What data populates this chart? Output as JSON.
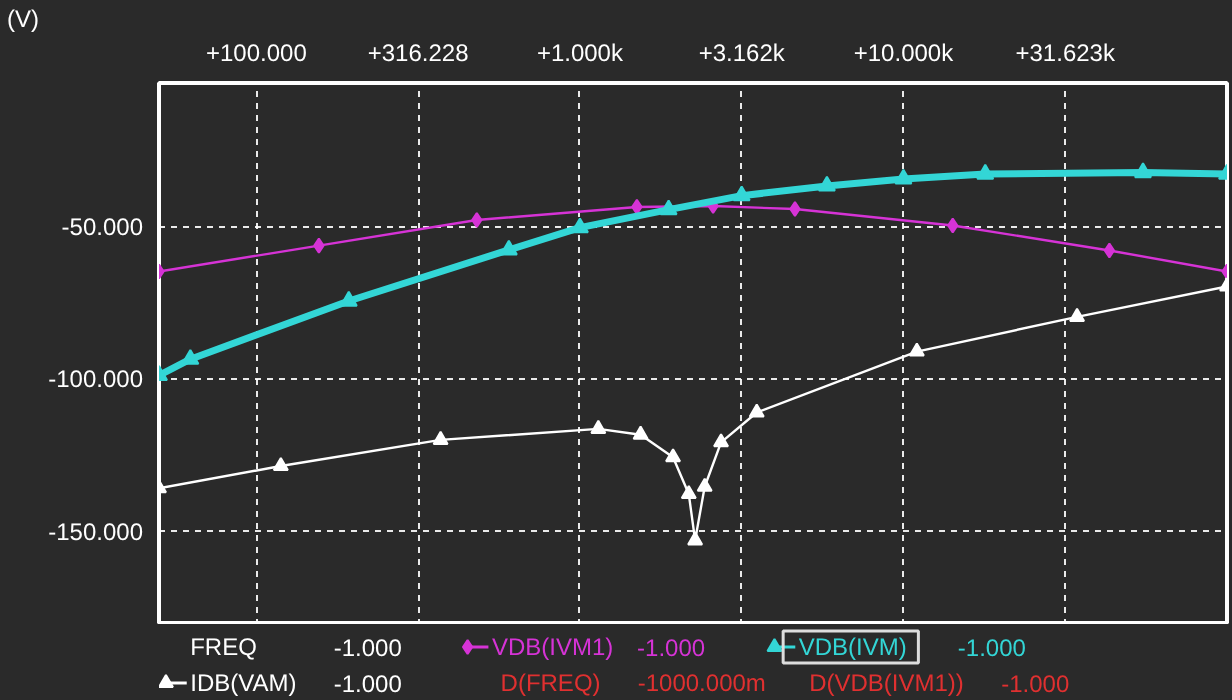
{
  "chart_data": {
    "type": "line",
    "ylabel": "(V)",
    "log": "x",
    "xlim": [
      50,
      100000
    ],
    "xticks": [
      {
        "value": 100,
        "label": "+100.000"
      },
      {
        "value": 316.228,
        "label": "+316.228"
      },
      {
        "value": 1000,
        "label": "+1.000k"
      },
      {
        "value": 3162.28,
        "label": "+3.162k"
      },
      {
        "value": 10000,
        "label": "+10.000k"
      },
      {
        "value": 31623,
        "label": "+31.623k"
      }
    ],
    "ylim": [
      -181,
      -3
    ],
    "yticks": [
      {
        "value": -50,
        "label": "-50.000"
      },
      {
        "value": -100,
        "label": "-100.000"
      },
      {
        "value": -150,
        "label": "-150.000"
      }
    ],
    "grid": true,
    "legend": "bottom",
    "series": [
      {
        "name": "VDB(IVM1)",
        "color": "#d633d6",
        "marker": "diamond",
        "x": [
          50,
          156,
          480,
          1500,
          2580,
          4620,
          14200,
          43300,
          100000
        ],
        "values": [
          -64.9,
          -56.4,
          -48.0,
          -43.7,
          -43.4,
          -44.4,
          -49.8,
          -58.0,
          -64.9
        ]
      },
      {
        "name": "VDB(IVM)",
        "color": "#33d6d6",
        "marker": "triangle",
        "x": [
          50,
          62.5,
          193,
          603,
          1000,
          1880,
          3162,
          5800,
          10000,
          17900,
          55000,
          100000
        ],
        "values": [
          -99,
          -93.7,
          -74.6,
          -57.8,
          -50.5,
          -44.6,
          -40,
          -36.8,
          -34.5,
          -32.9,
          -32.4,
          -32.9
        ]
      },
      {
        "name": "IDB(VAM)",
        "color": "#ffffff",
        "marker": "triangle",
        "x": [
          50,
          119,
          371,
          1140,
          1540,
          1940,
          2170,
          2270,
          2430,
          2730,
          3520,
          11000,
          34400,
          100000
        ],
        "values": [
          -136.1,
          -128.8,
          -120.2,
          -116.6,
          -118.5,
          -125.9,
          -138,
          -153.2,
          -135.6,
          -121,
          -111.2,
          -91.2,
          -79.8,
          -69.8
        ]
      }
    ],
    "annotations": [
      "FREQ",
      "-1.000",
      "-1.000",
      "-1.000",
      "-1.000",
      "D(FREQ)",
      "-1000.000m",
      "D(VDB(IVM1))",
      "-1.000"
    ]
  }
}
